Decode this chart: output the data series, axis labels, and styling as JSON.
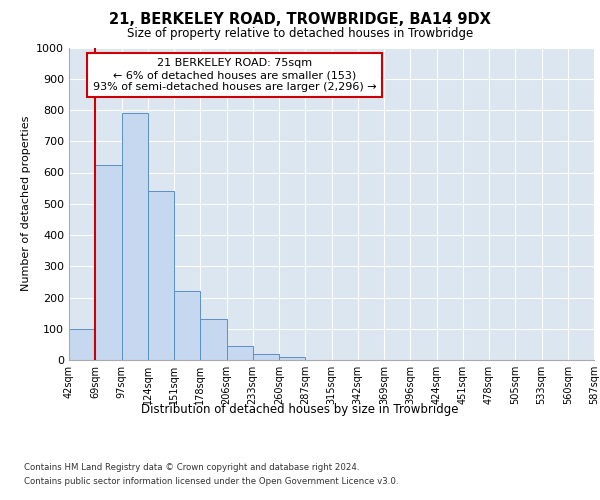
{
  "title": "21, BERKELEY ROAD, TROWBRIDGE, BA14 9DX",
  "subtitle": "Size of property relative to detached houses in Trowbridge",
  "xlabel": "Distribution of detached houses by size in Trowbridge",
  "ylabel": "Number of detached properties",
  "bar_color": "#c5d8ef",
  "bar_edge_color": "#5b8fc9",
  "bg_color": "#dce6f0",
  "grid_color": "#ffffff",
  "bin_labels": [
    "42sqm",
    "69sqm",
    "97sqm",
    "124sqm",
    "151sqm",
    "178sqm",
    "206sqm",
    "233sqm",
    "260sqm",
    "287sqm",
    "315sqm",
    "342sqm",
    "369sqm",
    "396sqm",
    "424sqm",
    "451sqm",
    "478sqm",
    "505sqm",
    "533sqm",
    "560sqm",
    "587sqm"
  ],
  "bar_values": [
    100,
    625,
    790,
    540,
    220,
    130,
    45,
    20,
    10,
    0,
    0,
    0,
    0,
    0,
    0,
    0,
    0,
    0,
    0,
    0
  ],
  "ylim": [
    0,
    1000
  ],
  "yticks": [
    0,
    100,
    200,
    300,
    400,
    500,
    600,
    700,
    800,
    900,
    1000
  ],
  "property_line_x": 1.0,
  "annotation_title": "21 BERKELEY ROAD: 75sqm",
  "annotation_line1": "← 6% of detached houses are smaller (153)",
  "annotation_line2": "93% of semi-detached houses are larger (2,296) →",
  "annotation_box_color": "#ffffff",
  "annotation_border_color": "#cc0000",
  "red_line_color": "#cc0000",
  "footer1": "Contains HM Land Registry data © Crown copyright and database right 2024.",
  "footer2": "Contains public sector information licensed under the Open Government Licence v3.0."
}
